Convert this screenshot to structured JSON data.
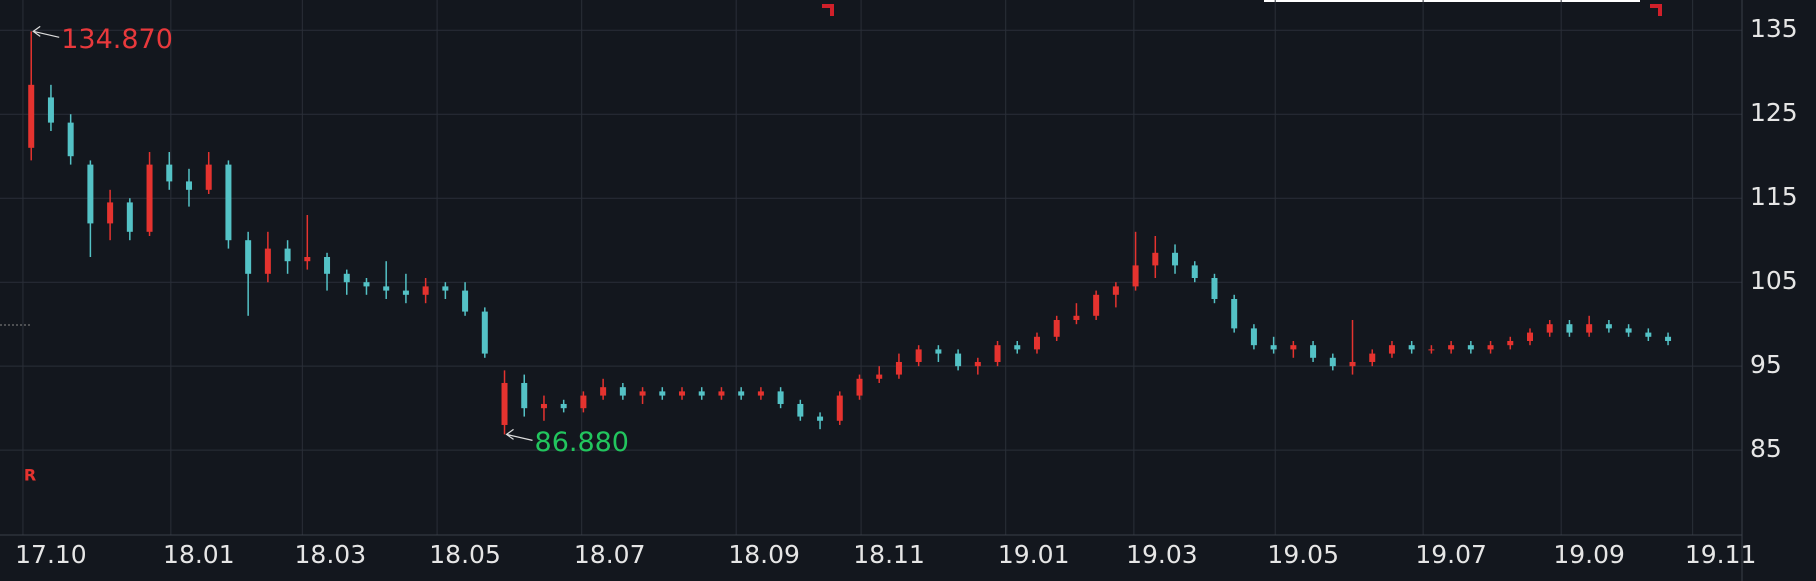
{
  "chart_data": {
    "type": "candlestick",
    "x": [
      6,
      12,
      18,
      24,
      30,
      36,
      42,
      48,
      54,
      60,
      66,
      72,
      78,
      84,
      90,
      96,
      102,
      108,
      114,
      120,
      126,
      132,
      138,
      144,
      150,
      156,
      162,
      168,
      174,
      180,
      186,
      192,
      198,
      204,
      210,
      216,
      222,
      228,
      234,
      240,
      246,
      252,
      258,
      264,
      270,
      276,
      282,
      288,
      294,
      300,
      306,
      312,
      318,
      324,
      330,
      336,
      342,
      348,
      354,
      360,
      366,
      372,
      378,
      384,
      390,
      396,
      402,
      408,
      414,
      420,
      426,
      432,
      438,
      444,
      450,
      456,
      462,
      468,
      474,
      480,
      486,
      492,
      498,
      504
    ],
    "open": [
      121,
      127,
      124,
      119,
      112,
      114.5,
      111,
      119,
      117,
      116,
      119,
      110,
      106,
      109,
      107.5,
      108,
      106,
      105,
      104.5,
      104,
      103.5,
      104.5,
      104,
      101.5,
      88,
      93,
      90,
      90.5,
      90,
      91.5,
      92.5,
      91.5,
      92,
      91.5,
      92,
      91.5,
      92,
      91.5,
      92,
      90.5,
      89,
      88.5,
      91.5,
      93.5,
      94,
      95.5,
      97,
      96.5,
      95,
      95.5,
      97.5,
      97,
      98.5,
      100.5,
      101,
      103.5,
      104.5,
      107,
      108.5,
      107,
      105.5,
      103,
      99.5,
      97.5,
      97,
      97.5,
      96,
      95,
      95.5,
      96.5,
      97.5,
      97,
      97,
      97.5,
      97,
      97.5,
      98,
      99,
      100,
      99,
      100,
      99.5,
      99,
      98.5
    ],
    "high": [
      134.87,
      128.5,
      125,
      119.5,
      116,
      115,
      120.5,
      120.5,
      118.5,
      120.5,
      119.5,
      111,
      111,
      110,
      113,
      108.5,
      106.5,
      105.5,
      107.5,
      106,
      105.5,
      105,
      105,
      102,
      94.5,
      94,
      91.5,
      91,
      92,
      93.5,
      93,
      92.5,
      92.5,
      92.5,
      92.5,
      92.5,
      92.5,
      92.5,
      92.5,
      91,
      89.5,
      92,
      94,
      95,
      96.5,
      97.5,
      97.5,
      97,
      96,
      98,
      98,
      99,
      101,
      102.5,
      104,
      105,
      111,
      110.5,
      109.5,
      107.5,
      106,
      103.5,
      100,
      98.5,
      98,
      98,
      96.5,
      100.5,
      97,
      98,
      98,
      97.5,
      98,
      98,
      98,
      98.5,
      99.5,
      100.5,
      100.5,
      101,
      100.5,
      100,
      99.5,
      99
    ],
    "low": [
      119.5,
      123,
      119,
      108,
      110,
      110,
      110.5,
      116,
      114,
      115.5,
      109,
      101,
      105,
      106,
      106.5,
      104,
      103.5,
      103.5,
      103,
      102.5,
      102.5,
      103,
      101,
      96,
      86.88,
      89,
      88.5,
      89.5,
      89.5,
      91,
      91,
      90.5,
      91,
      91,
      91,
      91,
      91,
      91,
      90,
      88.5,
      87.5,
      88,
      91,
      93,
      93.5,
      95,
      95.5,
      94.5,
      94,
      95,
      96.5,
      96.5,
      98,
      100,
      100.5,
      102,
      104,
      105.5,
      106,
      105,
      102.5,
      99,
      97,
      96.5,
      96,
      95.5,
      94.5,
      94,
      95,
      96,
      96.5,
      96.5,
      96.5,
      96.5,
      96.5,
      97,
      97.5,
      98.5,
      98.5,
      98.5,
      99,
      98.5,
      98,
      97.5
    ],
    "close": [
      128.5,
      124,
      120,
      112,
      114.5,
      111,
      119,
      117,
      116,
      119,
      110,
      106,
      109,
      107.5,
      108,
      106,
      105,
      104.5,
      104,
      103.5,
      104.5,
      104,
      101.5,
      96.5,
      93,
      90,
      90.5,
      90,
      91.5,
      92.5,
      91.5,
      92,
      91.5,
      92,
      91.5,
      92,
      91.5,
      92,
      90.5,
      89,
      88.5,
      91.5,
      93.5,
      94,
      95.5,
      97,
      96.5,
      95,
      95.5,
      97.5,
      97,
      98.5,
      100.5,
      101,
      103.5,
      104.5,
      107,
      108.5,
      107,
      105.5,
      103,
      99.5,
      97.5,
      97,
      97.5,
      96,
      95,
      95.5,
      96.5,
      97.5,
      97,
      97,
      97.5,
      97,
      97.5,
      98,
      99,
      100,
      99,
      100,
      99.5,
      99,
      98.5,
      98
    ],
    "up_color": "#e5332f",
    "down_color": "#54c2c6",
    "xlim": [
      -3.5,
      526.5
    ],
    "xticks": [
      {
        "value": 12,
        "label": "17.10"
      },
      {
        "value": 57,
        "label": "18.01"
      },
      {
        "value": 97,
        "label": "18.03"
      },
      {
        "value": 138,
        "label": "18.05"
      },
      {
        "value": 182,
        "label": "18.07"
      },
      {
        "value": 229,
        "label": "18.09"
      },
      {
        "value": 267,
        "label": "18.11"
      },
      {
        "value": 311,
        "label": "19.01"
      },
      {
        "value": 350,
        "label": "19.03"
      },
      {
        "value": 393,
        "label": "19.05"
      },
      {
        "value": 438,
        "label": "19.07"
      },
      {
        "value": 480,
        "label": "19.09"
      },
      {
        "value": 520,
        "label": "19.11"
      }
    ],
    "ylim": [
      74.9,
      138.6
    ],
    "yticks": [
      85,
      95,
      105,
      115,
      125,
      135
    ],
    "grid": true,
    "annotations": [
      {
        "label": "134.870",
        "value": 134.87,
        "x": 6,
        "color": "#e8393c"
      },
      {
        "label": "86.880",
        "value": 86.88,
        "x": 150,
        "color": "#22c55e"
      }
    ],
    "marker": "R"
  }
}
